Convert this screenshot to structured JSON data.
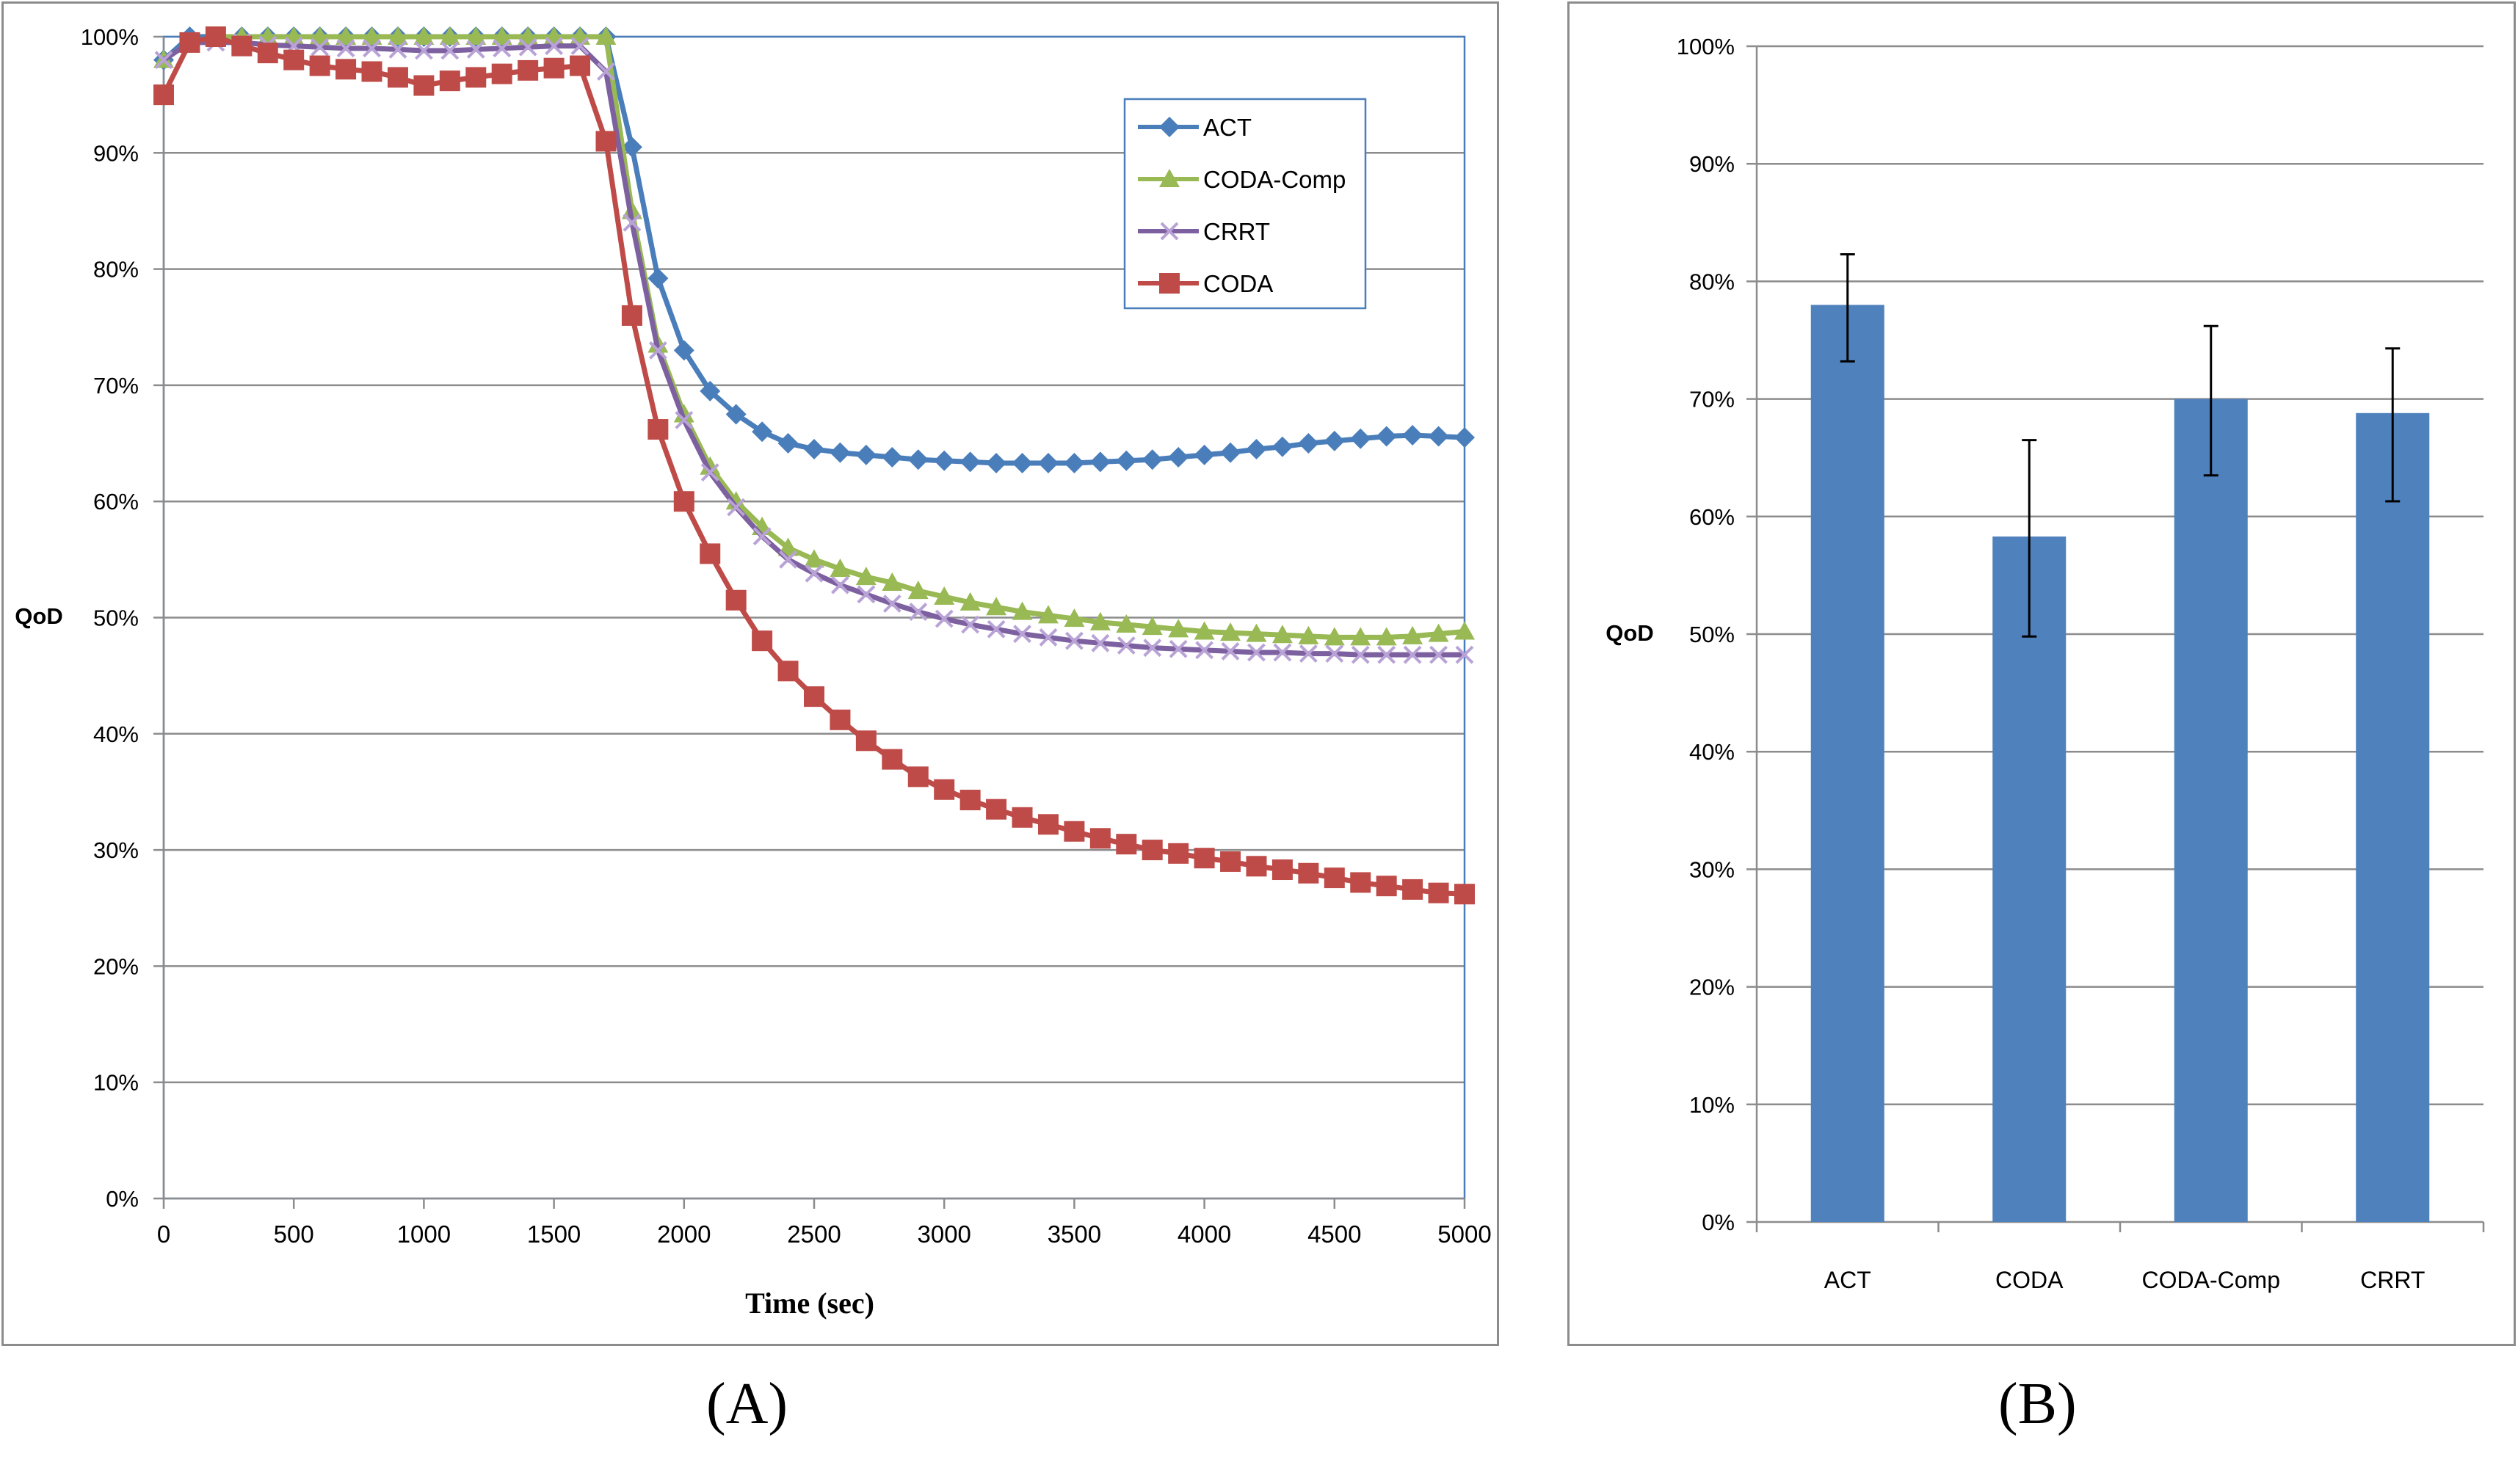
{
  "chart_data": [
    {
      "type": "line",
      "ylabel": "QoD",
      "xlabel": "Time (sec)",
      "xlim": [
        0,
        5000
      ],
      "ylim": [
        0,
        100
      ],
      "xticks": [
        0,
        500,
        1000,
        1500,
        2000,
        2500,
        3000,
        3500,
        4000,
        4500,
        5000
      ],
      "yticks": [
        0,
        10,
        20,
        30,
        40,
        50,
        60,
        70,
        80,
        90,
        100
      ],
      "ytick_labels": [
        "0%",
        "10%",
        "20%",
        "30%",
        "40%",
        "50%",
        "60%",
        "70%",
        "80%",
        "90%",
        "100%"
      ],
      "xtick_labels": [
        "0",
        "500",
        "1000",
        "1500",
        "2000",
        "2500",
        "3000",
        "3500",
        "4000",
        "4500",
        "5000"
      ],
      "grid": true,
      "legend": "top-right",
      "x": [
        0,
        100,
        200,
        300,
        400,
        500,
        600,
        700,
        800,
        900,
        1000,
        1100,
        1200,
        1300,
        1400,
        1500,
        1600,
        1700,
        1800,
        1900,
        2000,
        2100,
        2200,
        2300,
        2400,
        2500,
        2600,
        2700,
        2800,
        2900,
        3000,
        3100,
        3200,
        3300,
        3400,
        3500,
        3600,
        3700,
        3800,
        3900,
        4000,
        4100,
        4200,
        4300,
        4400,
        4500,
        4600,
        4700,
        4800,
        4900,
        5000
      ],
      "series": [
        {
          "name": "ACT",
          "color": "#4a7ebb",
          "marker": "diamond",
          "values": [
            98,
            100,
            100,
            100,
            100,
            100,
            100,
            100,
            100,
            100,
            100,
            100,
            100,
            100,
            100,
            100,
            100,
            100,
            90.5,
            79.2,
            73,
            69.5,
            67.5,
            66,
            65,
            64.5,
            64.2,
            64,
            63.8,
            63.6,
            63.5,
            63.4,
            63.3,
            63.3,
            63.3,
            63.3,
            63.4,
            63.5,
            63.6,
            63.8,
            64,
            64.2,
            64.5,
            64.7,
            65,
            65.2,
            65.4,
            65.6,
            65.7,
            65.6,
            65.5
          ]
        },
        {
          "name": "CODA-Comp",
          "color": "#98b954",
          "marker": "triangle",
          "values": [
            98,
            99.5,
            100,
            100,
            100,
            100,
            100,
            100,
            100,
            100,
            100,
            100,
            100,
            100,
            100,
            100,
            100,
            100,
            85,
            73.5,
            67.5,
            63,
            60,
            57.8,
            56,
            55,
            54.2,
            53.5,
            53,
            52.3,
            51.8,
            51.3,
            50.9,
            50.5,
            50.2,
            49.9,
            49.6,
            49.4,
            49.2,
            49,
            48.8,
            48.7,
            48.6,
            48.5,
            48.4,
            48.3,
            48.3,
            48.3,
            48.4,
            48.6,
            48.8
          ]
        },
        {
          "name": "CRRT",
          "color": "#7d60a0",
          "marker": "x",
          "values": [
            98,
            99.5,
            99.5,
            99.5,
            99.3,
            99.2,
            99.1,
            99,
            99,
            98.9,
            98.8,
            98.8,
            98.9,
            99,
            99.1,
            99.2,
            99.2,
            97,
            84,
            73,
            67,
            62.5,
            59.5,
            57,
            55,
            53.8,
            52.8,
            52,
            51.2,
            50.5,
            49.9,
            49.4,
            49,
            48.6,
            48.3,
            48,
            47.8,
            47.6,
            47.4,
            47.3,
            47.2,
            47.1,
            47,
            47,
            46.9,
            46.9,
            46.8,
            46.8,
            46.8,
            46.8,
            46.8
          ]
        },
        {
          "name": "CODA",
          "color": "#be4b48",
          "marker": "square",
          "values": [
            95,
            99.5,
            100,
            99.2,
            98.6,
            98,
            97.5,
            97.2,
            97,
            96.5,
            95.8,
            96.2,
            96.5,
            96.8,
            97.1,
            97.3,
            97.5,
            91,
            76,
            66.2,
            60,
            55.5,
            51.5,
            48,
            45.4,
            43.2,
            41.2,
            39.4,
            37.8,
            36.3,
            35.2,
            34.3,
            33.5,
            32.8,
            32.2,
            31.6,
            31,
            30.5,
            30,
            29.7,
            29.3,
            29,
            28.6,
            28.3,
            28,
            27.6,
            27.2,
            26.9,
            26.6,
            26.3,
            26.2
          ]
        }
      ]
    },
    {
      "type": "bar",
      "ylabel": "QoD",
      "xlabel": "",
      "ylim": [
        0,
        100
      ],
      "yticks": [
        0,
        10,
        20,
        30,
        40,
        50,
        60,
        70,
        80,
        90,
        100
      ],
      "ytick_labels": [
        "0%",
        "10%",
        "20%",
        "30%",
        "40%",
        "50%",
        "60%",
        "70%",
        "80%",
        "90%",
        "100%"
      ],
      "grid": true,
      "categories": [
        "ACT",
        "CODA",
        "CODA-Comp",
        "CRRT"
      ],
      "values": [
        78,
        58.3,
        70,
        68.8
      ],
      "error_low": [
        73.2,
        49.8,
        63.5,
        61.3
      ],
      "error_high": [
        82.3,
        66.5,
        76.2,
        74.3
      ],
      "bar_color": "#4f81bd"
    }
  ],
  "captions": {
    "a": "(A)",
    "b": "(B)"
  }
}
